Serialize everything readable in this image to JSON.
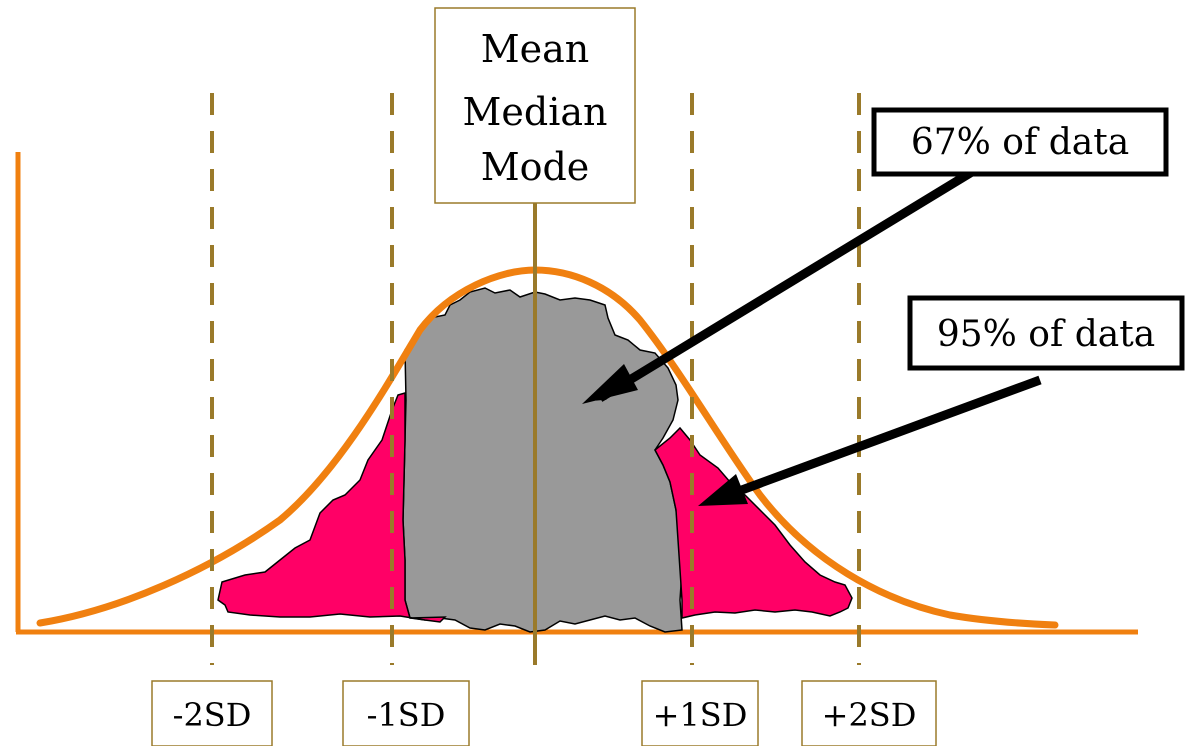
{
  "colors": {
    "curve": "#f08010",
    "axis": "#f08010",
    "guide": "#9a7a2a",
    "box_border": "#9a7a2a",
    "center_fill": "#999999",
    "side_fill": "#ff0066",
    "arrow": "#000000"
  },
  "center_labels": [
    "Mean",
    "Median",
    "Mode"
  ],
  "callouts": {
    "inner": "67% of data",
    "outer": "95% of data"
  },
  "sd_labels": {
    "minus2": "-2SD",
    "minus1": "-1SD",
    "plus1": "+1SD",
    "plus2": "+2SD"
  }
}
